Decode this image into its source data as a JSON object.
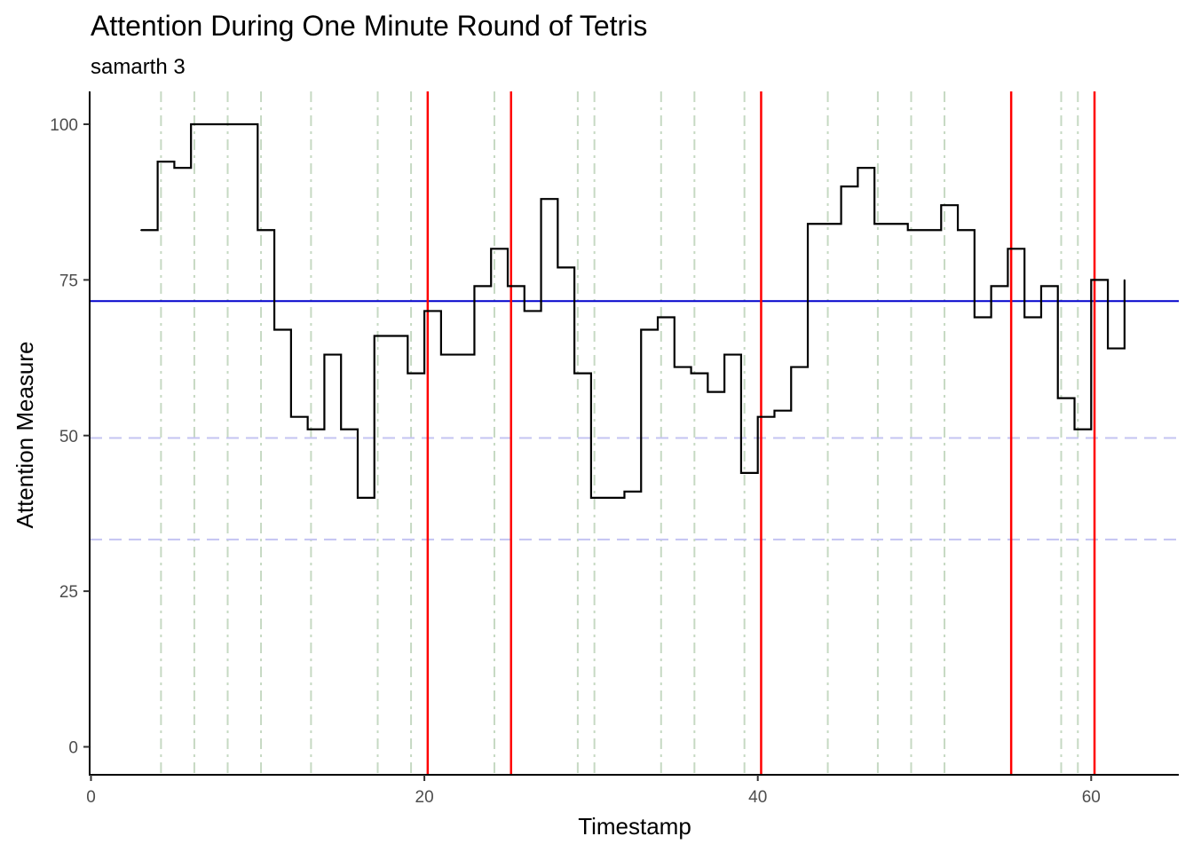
{
  "chart_data": {
    "type": "line",
    "line_style": "step",
    "title": "Attention During One Minute Round of Tetris",
    "subtitle": "samarth 3",
    "xlabel": "Timestamp",
    "ylabel": "Attention Measure",
    "xlim": [
      0,
      65
    ],
    "ylim": [
      0,
      100
    ],
    "x_ticks": [
      0,
      20,
      40,
      60
    ],
    "y_ticks": [
      0,
      25,
      50,
      75,
      100
    ],
    "grid": false,
    "series": [
      {
        "color": "#000000",
        "x": [
          3,
          4,
          5,
          6,
          7,
          8,
          9,
          10,
          11,
          12,
          13,
          14,
          15,
          16,
          17,
          18,
          19,
          20,
          21,
          22,
          23,
          24,
          25,
          26,
          27,
          28,
          29,
          30,
          31,
          32,
          33,
          34,
          35,
          36,
          37,
          38,
          39,
          40,
          41,
          42,
          43,
          44,
          45,
          46,
          47,
          48,
          49,
          50,
          51,
          52,
          53,
          54,
          55,
          56,
          57,
          58,
          59,
          60,
          61,
          62
        ],
        "y": [
          83,
          94,
          93,
          100,
          100,
          100,
          100,
          83,
          67,
          53,
          51,
          63,
          51,
          40,
          66,
          66,
          60,
          70,
          63,
          63,
          74,
          80,
          74,
          70,
          88,
          77,
          60,
          40,
          40,
          41,
          67,
          69,
          61,
          60,
          57,
          63,
          44,
          53,
          54,
          61,
          84,
          84,
          90,
          93,
          84,
          84,
          83,
          83,
          87,
          83,
          69,
          74,
          80,
          69,
          74,
          56,
          51,
          75,
          64,
          75
        ]
      }
    ],
    "horizontal_lines": [
      {
        "y": 71.6,
        "color": "#0000cc",
        "style": "solid"
      },
      {
        "y": 49.6,
        "color": "#c4c4f2",
        "style": "dashed"
      },
      {
        "y": 33.3,
        "color": "#c4c4f2",
        "style": "dashed"
      }
    ],
    "vertical_lines_red": {
      "x": [
        20.2,
        25.2,
        40.2,
        55.2,
        60.2
      ],
      "color": "#ff0000",
      "style": "solid"
    },
    "vertical_lines_green": {
      "x": [
        4.2,
        6.2,
        8.2,
        10.2,
        13.2,
        17.2,
        19.2,
        24.2,
        29.2,
        30.2,
        34.2,
        36.2,
        39.2,
        44.2,
        47.2,
        49.2,
        51.2,
        58.2,
        59.2
      ],
      "color": "#c6d9c3",
      "style": "dashdot"
    }
  }
}
